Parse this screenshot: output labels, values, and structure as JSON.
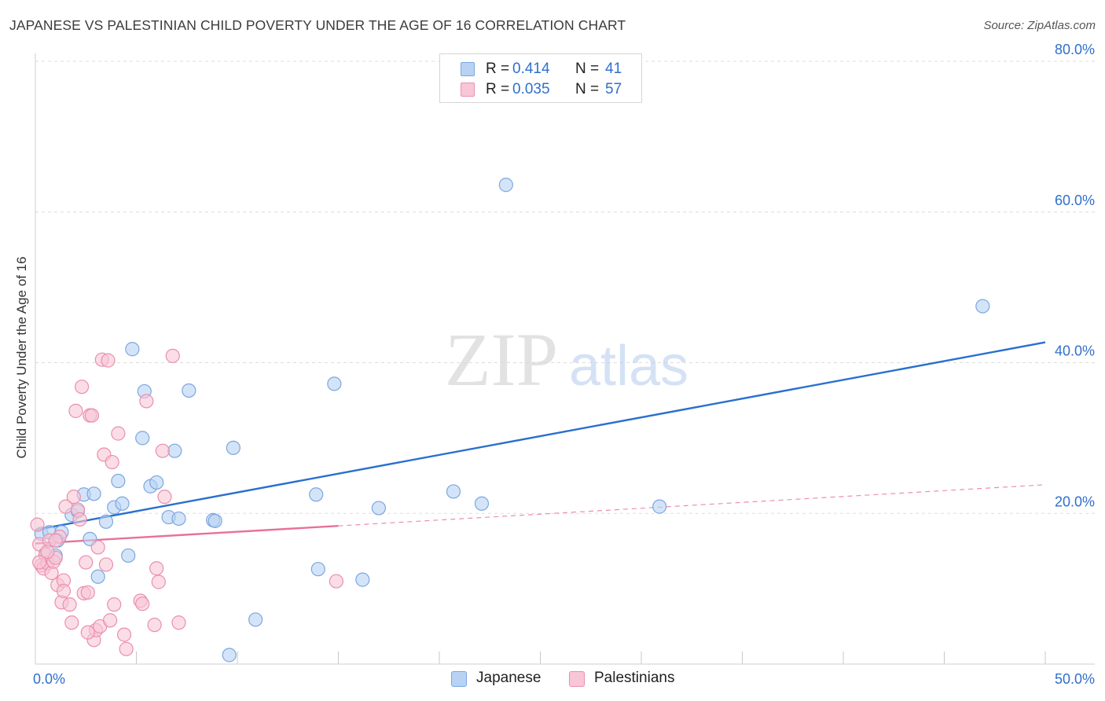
{
  "title": "JAPANESE VS PALESTINIAN CHILD POVERTY UNDER THE AGE OF 16 CORRELATION CHART",
  "source": "Source: ZipAtlas.com",
  "watermark": {
    "zip": "ZIP",
    "atlas": "atlas"
  },
  "colors": {
    "japanese_fill": "#b8d2f3",
    "japanese_stroke": "#7ba7e0",
    "japanese_line": "#2a6fcf",
    "palestinian_fill": "#f8c6d6",
    "palestinian_stroke": "#ea8fae",
    "palestinian_line": "#e8719b",
    "axis_label": "#2f6fcd",
    "grid": "#dddddd"
  },
  "legend": {
    "rows": [
      {
        "r_label": "R =",
        "r_value": "0.414",
        "n_label": "N =",
        "n_value": "41"
      },
      {
        "r_label": "R =",
        "r_value": "0.035",
        "n_label": "N =",
        "n_value": "57"
      }
    ]
  },
  "bottom_legend": {
    "japanese": "Japanese",
    "palestinians": "Palestinians"
  },
  "chart_data": {
    "type": "scatter",
    "title": "JAPANESE VS PALESTINIAN CHILD POVERTY UNDER THE AGE OF 16 CORRELATION CHART",
    "xlabel": "",
    "ylabel": "Child Poverty Under the Age of 16",
    "xlim": [
      0,
      50
    ],
    "ylim": [
      0,
      80
    ],
    "x_tick_labels": [
      "0.0%",
      "50.0%"
    ],
    "y_ticks": [
      20,
      40,
      60,
      80
    ],
    "y_tick_labels": [
      "20.0%",
      "40.0%",
      "60.0%",
      "80.0%"
    ],
    "grid": true,
    "series": [
      {
        "name": "Japanese",
        "r": 0.414,
        "n": 41,
        "trend": {
          "x": [
            0,
            50
          ],
          "y": [
            17.8,
            42.7
          ],
          "solid_until_x": 50
        },
        "points": [
          [
            0.3,
            17.3
          ],
          [
            0.5,
            14.5
          ],
          [
            0.7,
            17.5
          ],
          [
            1.0,
            14.4
          ],
          [
            1.1,
            16.4
          ],
          [
            1.3,
            17.5
          ],
          [
            1.8,
            19.8
          ],
          [
            2.1,
            20.3
          ],
          [
            2.4,
            22.5
          ],
          [
            2.7,
            16.6
          ],
          [
            2.9,
            22.6
          ],
          [
            3.1,
            11.6
          ],
          [
            3.5,
            18.9
          ],
          [
            3.9,
            20.8
          ],
          [
            4.1,
            24.3
          ],
          [
            4.3,
            21.3
          ],
          [
            4.6,
            14.4
          ],
          [
            4.8,
            41.8
          ],
          [
            5.3,
            30.0
          ],
          [
            5.4,
            36.2
          ],
          [
            5.7,
            23.6
          ],
          [
            6.0,
            24.1
          ],
          [
            6.6,
            19.5
          ],
          [
            6.9,
            28.3
          ],
          [
            7.1,
            19.3
          ],
          [
            7.6,
            36.3
          ],
          [
            8.8,
            19.1
          ],
          [
            8.9,
            19.0
          ],
          [
            9.6,
            1.2
          ],
          [
            9.8,
            28.7
          ],
          [
            10.9,
            5.9
          ],
          [
            13.9,
            22.5
          ],
          [
            14.0,
            12.6
          ],
          [
            14.8,
            37.2
          ],
          [
            16.2,
            11.2
          ],
          [
            17.0,
            20.7
          ],
          [
            20.7,
            22.9
          ],
          [
            22.1,
            21.3
          ],
          [
            23.3,
            63.6
          ],
          [
            30.9,
            20.9
          ],
          [
            46.9,
            47.5
          ]
        ]
      },
      {
        "name": "Palestinians",
        "r": 0.035,
        "n": 57,
        "trend": {
          "x": [
            0,
            50
          ],
          "y": [
            16.0,
            23.8
          ],
          "solid_until_x": 15.0
        },
        "points": [
          [
            0.1,
            18.5
          ],
          [
            0.2,
            15.9
          ],
          [
            0.3,
            13.1
          ],
          [
            0.4,
            12.7
          ],
          [
            0.5,
            14.6
          ],
          [
            0.6,
            13.4
          ],
          [
            0.7,
            16.4
          ],
          [
            0.8,
            12.1
          ],
          [
            0.9,
            13.6
          ],
          [
            1.0,
            14.1
          ],
          [
            1.1,
            10.5
          ],
          [
            1.2,
            16.9
          ],
          [
            1.3,
            8.2
          ],
          [
            1.4,
            11.1
          ],
          [
            1.4,
            9.7
          ],
          [
            1.5,
            20.9
          ],
          [
            1.7,
            7.9
          ],
          [
            1.8,
            5.5
          ],
          [
            1.9,
            22.2
          ],
          [
            2.0,
            33.6
          ],
          [
            2.1,
            20.5
          ],
          [
            2.2,
            19.2
          ],
          [
            2.3,
            36.8
          ],
          [
            2.4,
            9.4
          ],
          [
            2.5,
            13.5
          ],
          [
            2.6,
            9.5
          ],
          [
            2.7,
            33.0
          ],
          [
            2.8,
            33.0
          ],
          [
            2.9,
            3.2
          ],
          [
            3.0,
            4.5
          ],
          [
            3.1,
            15.5
          ],
          [
            3.2,
            5.0
          ],
          [
            3.3,
            40.4
          ],
          [
            3.4,
            27.8
          ],
          [
            3.5,
            13.2
          ],
          [
            3.6,
            40.3
          ],
          [
            3.7,
            5.8
          ],
          [
            3.8,
            26.8
          ],
          [
            3.9,
            7.9
          ],
          [
            4.1,
            30.6
          ],
          [
            4.4,
            3.9
          ],
          [
            4.5,
            2.0
          ],
          [
            5.2,
            8.4
          ],
          [
            5.3,
            8.0
          ],
          [
            5.5,
            34.9
          ],
          [
            5.9,
            5.2
          ],
          [
            6.0,
            12.7
          ],
          [
            6.1,
            10.9
          ],
          [
            6.3,
            28.3
          ],
          [
            6.4,
            22.2
          ],
          [
            6.8,
            40.9
          ],
          [
            7.1,
            5.5
          ],
          [
            14.9,
            11.0
          ],
          [
            0.6,
            14.9
          ],
          [
            1.0,
            16.4
          ],
          [
            2.6,
            4.2
          ],
          [
            0.2,
            13.5
          ]
        ]
      }
    ]
  }
}
